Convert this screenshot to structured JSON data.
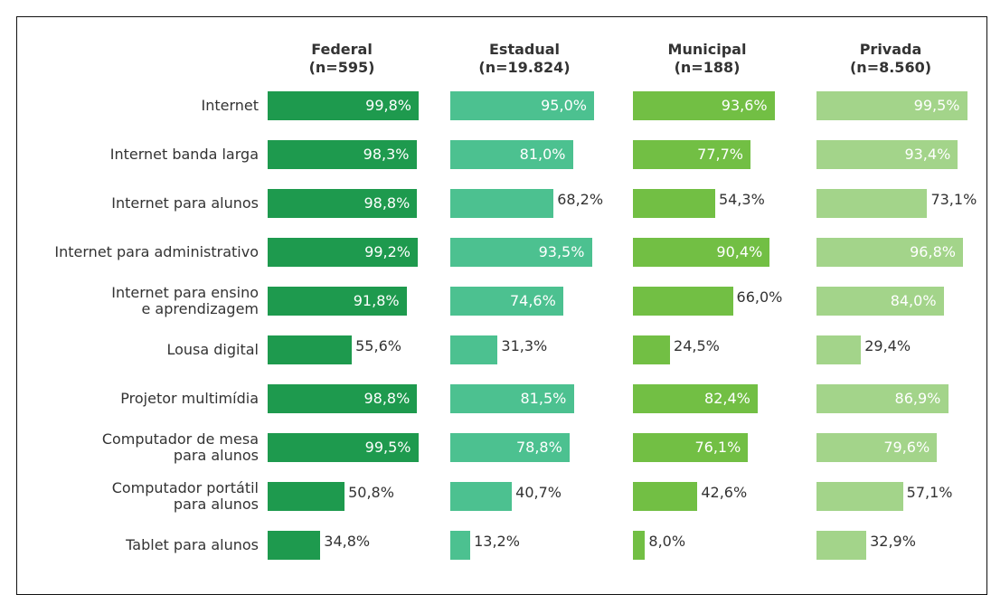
{
  "chart_data": {
    "type": "bar",
    "orientation": "horizontal",
    "categories": [
      "Internet",
      "Internet banda larga",
      "Internet para alunos",
      "Internet para administrativo",
      "Internet para ensino\ne aprendizagem",
      "Lousa digital",
      "Projetor multimídia",
      "Computador de mesa\npara alunos",
      "Computador portátil\npara alunos",
      "Tablet para alunos"
    ],
    "xlim": [
      0,
      100
    ],
    "series": [
      {
        "name": "Federal\n(n=595)",
        "color": "#1e9a4e",
        "values": [
          99.8,
          98.3,
          98.8,
          99.2,
          91.8,
          55.6,
          98.8,
          99.5,
          50.8,
          34.8
        ],
        "value_labels": [
          "99,8%",
          "98,3%",
          "98,8%",
          "99,2%",
          "91,8%",
          "55,6%",
          "98,8%",
          "99,5%",
          "50,8%",
          "34,8%"
        ]
      },
      {
        "name": "Estadual\n(n=19.824)",
        "color": "#4cc190",
        "values": [
          95.0,
          81.0,
          68.2,
          93.5,
          74.6,
          31.3,
          81.5,
          78.8,
          40.7,
          13.2
        ],
        "value_labels": [
          "95,0%",
          "81,0%",
          "68,2%",
          "93,5%",
          "74,6%",
          "31,3%",
          "81,5%",
          "78,8%",
          "40,7%",
          "13,2%"
        ]
      },
      {
        "name": "Municipal\n(n=188)",
        "color": "#72bf44",
        "values": [
          93.6,
          77.7,
          54.3,
          90.4,
          66.0,
          24.5,
          82.4,
          76.1,
          42.6,
          8.0
        ],
        "value_labels": [
          "93,6%",
          "77,7%",
          "54,3%",
          "90,4%",
          "66,0%",
          "24,5%",
          "82,4%",
          "76,1%",
          "42,6%",
          "8,0%"
        ]
      },
      {
        "name": "Privada\n(n=8.560)",
        "color": "#a3d48a",
        "values": [
          99.5,
          93.4,
          73.1,
          96.8,
          84.0,
          29.4,
          86.9,
          79.6,
          57.1,
          32.9
        ],
        "value_labels": [
          "99,5%",
          "93,4%",
          "73,1%",
          "96,8%",
          "84,0%",
          "29,4%",
          "86,9%",
          "79,6%",
          "57,1%",
          "32,9%"
        ]
      }
    ]
  }
}
